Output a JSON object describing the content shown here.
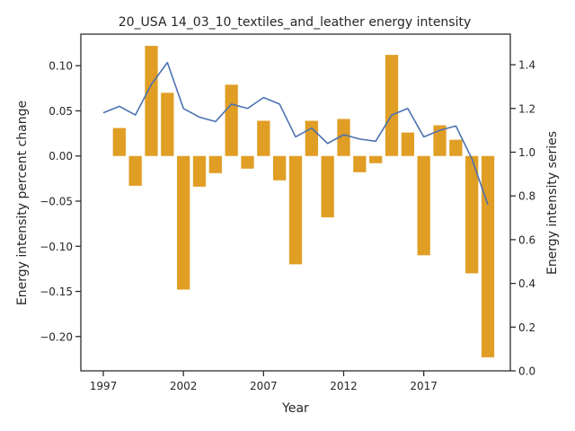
{
  "chart_data": {
    "type": "bar",
    "title": "20_USA 14_03_10_textiles_and_leather energy intensity",
    "xlabel": "Year",
    "ylabel": "Energy intensity percent change",
    "y2label": "Energy intensity series",
    "xlim": [
      1995.6,
      2022.4
    ],
    "ylim": [
      -0.238,
      0.135
    ],
    "y2lim": [
      0.0,
      1.54
    ],
    "xticks": [
      1997,
      2002,
      2007,
      2012,
      2017
    ],
    "yticks": [
      -0.2,
      -0.15,
      -0.1,
      -0.05,
      0.0,
      0.05,
      0.1
    ],
    "y2ticks": [
      0.0,
      0.2,
      0.4,
      0.6,
      0.8,
      1.0,
      1.2,
      1.4
    ],
    "grid": false,
    "colors": {
      "bar": "#e09e25",
      "line": "#4c72b0",
      "axis": "#262626"
    },
    "series": [
      {
        "type": "bar",
        "axis": "left",
        "x": [
          1998,
          1999,
          2000,
          2001,
          2002,
          2003,
          2004,
          2005,
          2006,
          2007,
          2008,
          2009,
          2010,
          2011,
          2012,
          2013,
          2014,
          2015,
          2016,
          2017,
          2018,
          2019,
          2020,
          2021
        ],
        "values": [
          0.031,
          -0.033,
          0.122,
          0.07,
          -0.148,
          -0.034,
          -0.019,
          0.079,
          -0.014,
          0.039,
          -0.027,
          -0.12,
          0.039,
          -0.068,
          0.041,
          -0.018,
          -0.008,
          0.112,
          0.026,
          -0.11,
          0.034,
          0.018,
          -0.13,
          -0.223
        ]
      },
      {
        "type": "line",
        "axis": "right",
        "x": [
          1997,
          1998,
          1999,
          2000,
          2001,
          2002,
          2003,
          2004,
          2005,
          2006,
          2007,
          2008,
          2009,
          2010,
          2011,
          2012,
          2013,
          2014,
          2015,
          2016,
          2017,
          2018,
          2019,
          2020,
          2021
        ],
        "values": [
          1.18,
          1.21,
          1.17,
          1.31,
          1.41,
          1.2,
          1.16,
          1.14,
          1.22,
          1.2,
          1.25,
          1.22,
          1.07,
          1.11,
          1.04,
          1.08,
          1.06,
          1.05,
          1.17,
          1.2,
          1.07,
          1.1,
          1.12,
          0.97,
          0.76
        ]
      }
    ]
  }
}
